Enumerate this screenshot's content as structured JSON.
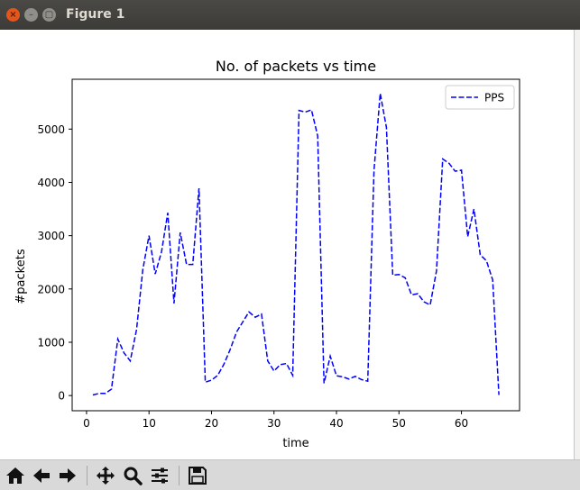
{
  "window": {
    "title": "Figure 1",
    "close_label": "×",
    "minimize_label": "–",
    "maximize_label": "▢"
  },
  "toolbar": {
    "items": [
      {
        "name": "home-icon"
      },
      {
        "name": "back-icon"
      },
      {
        "name": "forward-icon"
      },
      {
        "name": "pan-icon"
      },
      {
        "name": "zoom-icon"
      },
      {
        "name": "subplots-icon"
      },
      {
        "name": "save-icon"
      }
    ]
  },
  "chart_data": {
    "type": "line",
    "title": "No. of packets vs time",
    "xlabel": "time",
    "ylabel": "#packets",
    "xlim": [
      -2.3,
      69.3
    ],
    "ylim": [
      -285,
      5935
    ],
    "xticks": [
      0,
      10,
      20,
      30,
      40,
      50,
      60
    ],
    "yticks": [
      0,
      1000,
      2000,
      3000,
      4000,
      5000
    ],
    "grid": false,
    "legend": "top-right",
    "series": [
      {
        "name": "PPS",
        "color": "#0000ff",
        "line_style": "dashed",
        "x": [
          1,
          2,
          3,
          4,
          5,
          6,
          7,
          8,
          9,
          10,
          11,
          12,
          13,
          14,
          15,
          16,
          17,
          18,
          19,
          20,
          21,
          22,
          23,
          24,
          25,
          26,
          27,
          28,
          29,
          30,
          31,
          32,
          33,
          34,
          35,
          36,
          37,
          38,
          39,
          40,
          41,
          42,
          43,
          44,
          45,
          46,
          47,
          48,
          49,
          50,
          51,
          52,
          53,
          54,
          55,
          56,
          57,
          58,
          59,
          60,
          61,
          62,
          63,
          64,
          65,
          66
        ],
        "y": [
          10,
          40,
          40,
          120,
          1060,
          800,
          650,
          1240,
          2360,
          3000,
          2280,
          2700,
          3430,
          1730,
          3060,
          2460,
          2460,
          3890,
          250,
          290,
          380,
          590,
          870,
          1190,
          1380,
          1570,
          1470,
          1530,
          650,
          460,
          580,
          600,
          380,
          5350,
          5320,
          5360,
          4870,
          230,
          740,
          370,
          350,
          310,
          360,
          300,
          270,
          4220,
          5670,
          5030,
          2260,
          2270,
          2210,
          1890,
          1910,
          1760,
          1700,
          2340,
          4440,
          4360,
          4210,
          4230,
          2980,
          3500,
          2640,
          2530,
          2170,
          10
        ]
      }
    ]
  }
}
